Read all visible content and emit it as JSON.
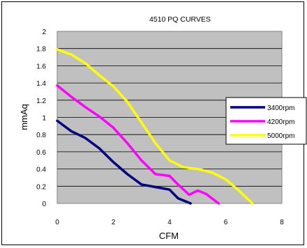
{
  "chart_data": {
    "type": "line",
    "title": "4510 PQ CURVES",
    "xlabel": "CFM",
    "ylabel": "mmAq",
    "xlim": [
      0,
      8
    ],
    "ylim": [
      0,
      2
    ],
    "xticks": [
      0,
      2,
      4,
      6,
      8
    ],
    "yticks": [
      0,
      0.2,
      0.4,
      0.6,
      0.8,
      1,
      1.2,
      1.4,
      1.6,
      1.8,
      2
    ],
    "xtick_labels": [
      "0",
      "2",
      "4",
      "6",
      "8"
    ],
    "ytick_labels": [
      "0",
      "0.2",
      "0.4",
      "0.6",
      "0.8",
      "1",
      "1.2",
      "1.4",
      "1.6",
      "1.8",
      "2"
    ],
    "grid": "horizontal",
    "plot_background": "#c0c0c0",
    "legend_position": "right",
    "series": [
      {
        "name": "3400rpm",
        "color": "#000080",
        "x": [
          0,
          0.5,
          1,
          1.5,
          2,
          2.5,
          3,
          3.5,
          4,
          4.3,
          4.75
        ],
        "y": [
          0.96,
          0.84,
          0.76,
          0.64,
          0.48,
          0.34,
          0.22,
          0.19,
          0.16,
          0.06,
          0.0
        ]
      },
      {
        "name": "4200rpm",
        "color": "#ff00ff",
        "x": [
          0,
          0.5,
          1,
          1.5,
          2,
          2.5,
          3,
          3.5,
          4,
          4.3,
          4.7,
          5.0,
          5.3,
          5.75
        ],
        "y": [
          1.37,
          1.24,
          1.12,
          1.01,
          0.88,
          0.7,
          0.5,
          0.34,
          0.32,
          0.22,
          0.1,
          0.15,
          0.11,
          0.0
        ]
      },
      {
        "name": "5000rpm",
        "color": "#ffff00",
        "x": [
          0,
          0.5,
          1,
          1.5,
          2,
          2.5,
          3,
          3.5,
          4,
          4.5,
          5,
          5.5,
          6,
          6.5,
          6.95
        ],
        "y": [
          1.79,
          1.73,
          1.63,
          1.49,
          1.36,
          1.18,
          0.94,
          0.7,
          0.5,
          0.42,
          0.4,
          0.36,
          0.28,
          0.14,
          0.0
        ]
      }
    ]
  }
}
